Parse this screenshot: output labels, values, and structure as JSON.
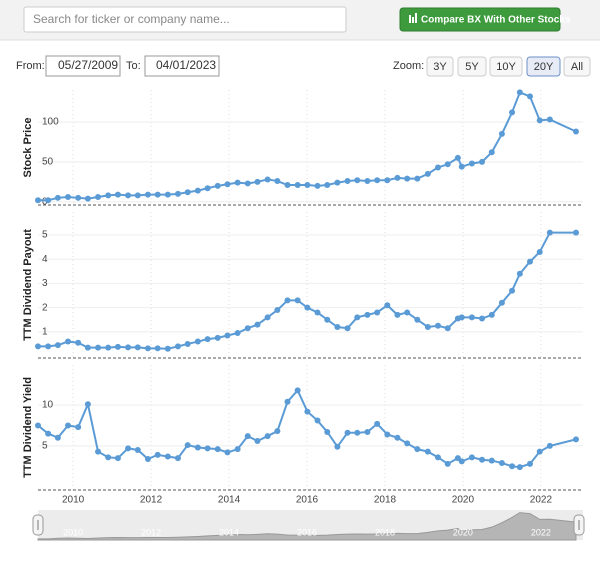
{
  "search": {
    "placeholder": "Search for ticker or company name..."
  },
  "compare_button": "Compare BX With Other Stocks",
  "range": {
    "from_label": "From:",
    "from": "05/27/2009",
    "to_label": "To:",
    "to": "04/01/2023"
  },
  "zoom": {
    "label": "Zoom:",
    "options": [
      "3Y",
      "5Y",
      "10Y",
      "20Y",
      "All"
    ],
    "active": 3
  },
  "chart_data": [
    {
      "type": "line",
      "y_label": "Stock Price",
      "color": "#5b9bd5",
      "x": [
        2009.1,
        2009.36,
        2009.61,
        2009.87,
        2010.13,
        2010.38,
        2010.64,
        2010.9,
        2011.15,
        2011.41,
        2011.66,
        2011.92,
        2012.17,
        2012.43,
        2012.69,
        2012.94,
        2013.2,
        2013.45,
        2013.71,
        2013.96,
        2014.22,
        2014.48,
        2014.73,
        2014.99,
        2015.24,
        2015.5,
        2015.76,
        2016.01,
        2016.27,
        2016.52,
        2016.78,
        2017.04,
        2017.29,
        2017.55,
        2017.8,
        2018.06,
        2018.32,
        2018.57,
        2018.83,
        2019.1,
        2019.36,
        2019.61,
        2019.87,
        2019.97,
        2020.23,
        2020.49,
        2020.74,
        2021.0,
        2021.26,
        2021.46,
        2021.72,
        2021.97,
        2022.23,
        2022.9
      ],
      "values": [
        2,
        2,
        5,
        6,
        5,
        4,
        6,
        8,
        9,
        8,
        8,
        9,
        9,
        9,
        10,
        12,
        14,
        17,
        20,
        22,
        24,
        23,
        25,
        28,
        26,
        21,
        21,
        21,
        20,
        21,
        24,
        26,
        27,
        26,
        27,
        27,
        30,
        29,
        29,
        35,
        43,
        47,
        55,
        44,
        48,
        50,
        62,
        85,
        112,
        137,
        132,
        102,
        103,
        88
      ],
      "xlim": [
        2009.1,
        2023.08
      ],
      "ylim": [
        -4,
        140
      ],
      "yticks": [
        0,
        50,
        100
      ],
      "xticks": [
        2010,
        2012,
        2014,
        2016,
        2018,
        2020,
        2022
      ],
      "grid": true
    },
    {
      "type": "line",
      "y_label": "TTM Dividend Payout",
      "color": "#5b9bd5",
      "x": [
        2009.1,
        2009.36,
        2009.61,
        2009.87,
        2010.13,
        2010.38,
        2010.64,
        2010.9,
        2011.15,
        2011.41,
        2011.66,
        2011.92,
        2012.17,
        2012.43,
        2012.69,
        2012.94,
        2013.2,
        2013.45,
        2013.71,
        2013.96,
        2014.22,
        2014.48,
        2014.73,
        2014.99,
        2015.24,
        2015.5,
        2015.76,
        2016.01,
        2016.27,
        2016.52,
        2016.78,
        2017.04,
        2017.29,
        2017.55,
        2017.8,
        2018.06,
        2018.32,
        2018.57,
        2018.83,
        2019.1,
        2019.36,
        2019.61,
        2019.87,
        2019.97,
        2020.23,
        2020.49,
        2020.74,
        2021.0,
        2021.26,
        2021.46,
        2021.72,
        2021.97,
        2022.23,
        2022.9
      ],
      "values": [
        0.4,
        0.4,
        0.45,
        0.6,
        0.55,
        0.35,
        0.35,
        0.35,
        0.38,
        0.36,
        0.36,
        0.32,
        0.32,
        0.3,
        0.4,
        0.5,
        0.6,
        0.7,
        0.75,
        0.85,
        0.95,
        1.15,
        1.3,
        1.6,
        1.9,
        2.3,
        2.3,
        2.0,
        1.8,
        1.5,
        1.2,
        1.15,
        1.6,
        1.7,
        1.8,
        2.1,
        1.7,
        1.8,
        1.5,
        1.2,
        1.25,
        1.15,
        1.55,
        1.6,
        1.6,
        1.55,
        1.7,
        2.2,
        2.7,
        3.4,
        3.9,
        4.3,
        5.1,
        5.1
      ],
      "xlim": [
        2009.1,
        2023.08
      ],
      "ylim": [
        -0.08,
        5.95
      ],
      "yticks": [
        1,
        2,
        3,
        4,
        5
      ],
      "xticks": [
        2010,
        2012,
        2014,
        2016,
        2018,
        2020,
        2022
      ],
      "grid": true
    },
    {
      "type": "line",
      "y_label": "TTM Dividend Yield",
      "color": "#5b9bd5",
      "x": [
        2009.1,
        2009.36,
        2009.61,
        2009.87,
        2010.13,
        2010.38,
        2010.64,
        2010.9,
        2011.15,
        2011.41,
        2011.66,
        2011.92,
        2012.17,
        2012.43,
        2012.69,
        2012.94,
        2013.2,
        2013.45,
        2013.71,
        2013.96,
        2014.22,
        2014.48,
        2014.73,
        2014.99,
        2015.24,
        2015.5,
        2015.76,
        2016.01,
        2016.27,
        2016.52,
        2016.78,
        2017.04,
        2017.29,
        2017.55,
        2017.8,
        2018.06,
        2018.32,
        2018.57,
        2018.83,
        2019.1,
        2019.36,
        2019.61,
        2019.87,
        2019.97,
        2020.23,
        2020.49,
        2020.74,
        2021.0,
        2021.26,
        2021.46,
        2021.72,
        2021.97,
        2022.23,
        2022.9
      ],
      "values": [
        7.5,
        6.5,
        6.0,
        7.5,
        7.3,
        10.1,
        4.3,
        3.6,
        3.5,
        4.7,
        4.5,
        3.4,
        3.9,
        3.7,
        3.5,
        5.1,
        4.8,
        4.7,
        4.6,
        4.2,
        4.6,
        6.2,
        5.6,
        6.2,
        6.8,
        10.4,
        11.8,
        9.2,
        8.1,
        6.7,
        4.9,
        6.6,
        6.6,
        6.7,
        7.7,
        6.4,
        6.0,
        5.3,
        4.6,
        4.3,
        3.6,
        2.8,
        3.5,
        3.1,
        3.6,
        3.3,
        3.2,
        2.9,
        2.5,
        2.4,
        2.8,
        4.3,
        5.0,
        5.8
      ],
      "xlim": [
        2009.1,
        2023.08
      ],
      "ylim": [
        -0.4,
        14.9
      ],
      "yticks": [
        5,
        10
      ],
      "xticks": [
        2010,
        2012,
        2014,
        2016,
        2018,
        2020,
        2022
      ],
      "grid": true
    }
  ]
}
